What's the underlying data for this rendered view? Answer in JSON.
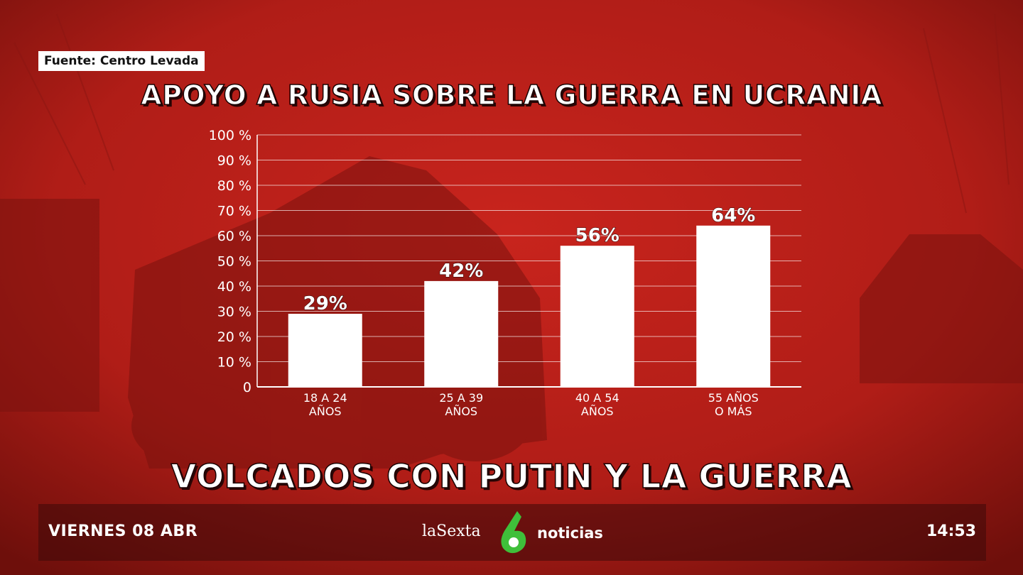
{
  "source": "Fuente: Centro Levada",
  "headline": "VOLCADOS CON PUTIN Y LA GUERRA",
  "ticker": {
    "date": "VIERNES 08 ABR",
    "channel": "laSexta",
    "program": "noticias",
    "time": "14:53"
  },
  "colors": {
    "background": "#b51f1a",
    "bars": "#ffffff",
    "text": "#ffffff",
    "logo_green": "#3fbf3a"
  },
  "icons": {
    "logo": "lasexta-6-logo-icon"
  },
  "chart_data": {
    "type": "bar",
    "title": "APOYO A RUSIA SOBRE LA GUERRA EN UCRANIA",
    "categories": [
      [
        "18 A 24",
        "AÑOS"
      ],
      [
        "25 A 39",
        "AÑOS"
      ],
      [
        "40 A 54",
        "AÑOS"
      ],
      [
        "55 AÑOS",
        "O MÁS"
      ]
    ],
    "values": [
      29,
      42,
      56,
      64
    ],
    "data_labels": [
      "29%",
      "42%",
      "56%",
      "64%"
    ],
    "yticks": [
      "0",
      "10 %",
      "20 %",
      "30 %",
      "40 %",
      "50 %",
      "60 %",
      "70 %",
      "80 %",
      "90 %",
      "100 %"
    ],
    "ylim": [
      0,
      100
    ],
    "grid": true,
    "xlabel": "",
    "ylabel": ""
  }
}
